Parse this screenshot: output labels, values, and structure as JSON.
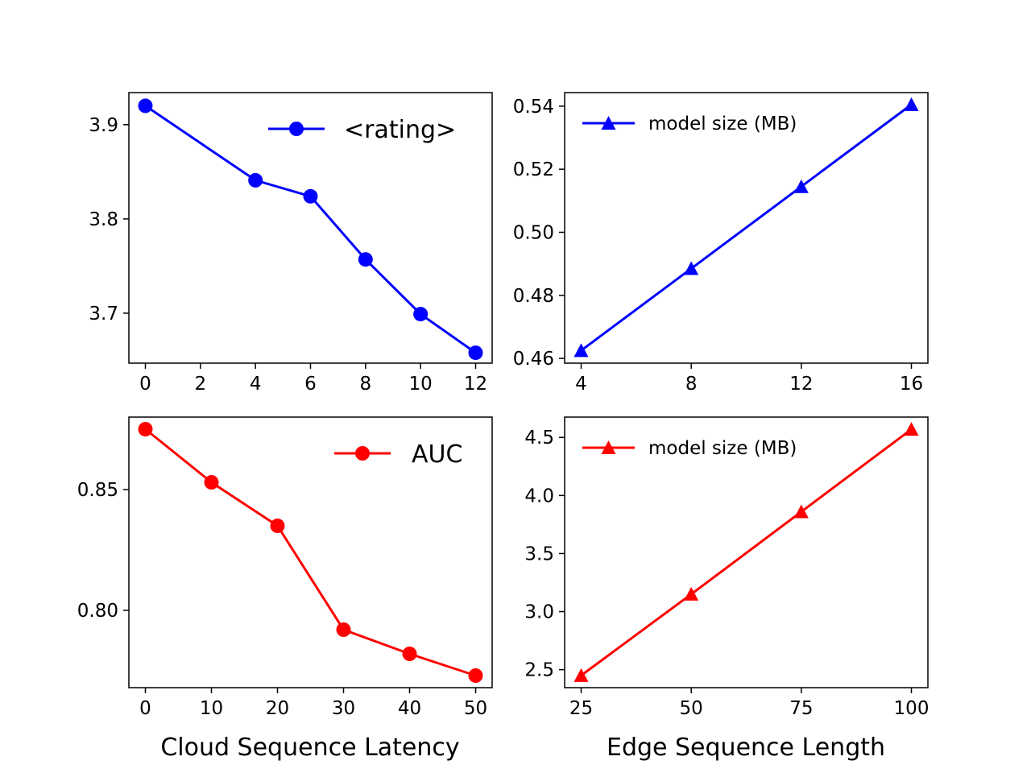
{
  "chart_data": [
    {
      "type": "line",
      "x": [
        0,
        4,
        6,
        8,
        10,
        12
      ],
      "xticks": [
        0,
        2,
        4,
        6,
        8,
        10,
        12
      ],
      "xlim": [
        -0.6,
        12.6
      ],
      "yticks": [
        3.7,
        3.8,
        3.9
      ],
      "ytick_labels": [
        "3.7",
        "3.8",
        "3.9"
      ],
      "ylim": [
        3.647,
        3.934
      ],
      "series": [
        {
          "name": "<rating>",
          "values": [
            3.92,
            3.841,
            3.824,
            3.757,
            3.699,
            3.658
          ],
          "color": "#0000ff",
          "marker": "circle"
        }
      ],
      "xlabel": "",
      "legend_position": "top-right"
    },
    {
      "type": "line",
      "x": [
        4,
        8,
        12,
        16
      ],
      "xticks": [
        4,
        8,
        12,
        16
      ],
      "xlim": [
        3.4,
        16.6
      ],
      "yticks": [
        0.46,
        0.48,
        0.5,
        0.52,
        0.54
      ],
      "ytick_labels": [
        "0.46",
        "0.48",
        "0.50",
        "0.52",
        "0.54"
      ],
      "ylim": [
        0.4585,
        0.5443
      ],
      "series": [
        {
          "name": "model size (MB)",
          "values": [
            0.4625,
            0.4885,
            0.5145,
            0.5405
          ],
          "color": "#0000ff",
          "marker": "triangle"
        }
      ],
      "xlabel": "",
      "legend_position": "top-left"
    },
    {
      "type": "line",
      "x": [
        0,
        10,
        20,
        30,
        40,
        50
      ],
      "xticks": [
        0,
        10,
        20,
        30,
        40,
        50
      ],
      "xlim": [
        -2.5,
        52.5
      ],
      "yticks": [
        0.8,
        0.85
      ],
      "ytick_labels": [
        "0.80",
        "0.85"
      ],
      "ylim": [
        0.768,
        0.88
      ],
      "series": [
        {
          "name": "AUC",
          "values": [
            0.875,
            0.853,
            0.835,
            0.792,
            0.782,
            0.773
          ],
          "color": "#ff0000",
          "marker": "circle"
        }
      ],
      "xlabel": "Cloud Sequence Latency",
      "legend_position": "top-right"
    },
    {
      "type": "line",
      "x": [
        25,
        50,
        75,
        100
      ],
      "xticks": [
        25,
        50,
        75,
        100
      ],
      "xlim": [
        21.25,
        103.75
      ],
      "yticks": [
        2.5,
        3.0,
        3.5,
        4.0,
        4.5
      ],
      "ytick_labels": [
        "2.5",
        "3.0",
        "3.5",
        "4.0",
        "4.5"
      ],
      "ylim": [
        2.345,
        4.675
      ],
      "series": [
        {
          "name": "model size (MB)",
          "values": [
            2.45,
            3.15,
            3.86,
            4.57
          ],
          "color": "#ff0000",
          "marker": "triangle"
        }
      ],
      "xlabel": "Edge Sequence Length",
      "legend_position": "top-left"
    }
  ]
}
